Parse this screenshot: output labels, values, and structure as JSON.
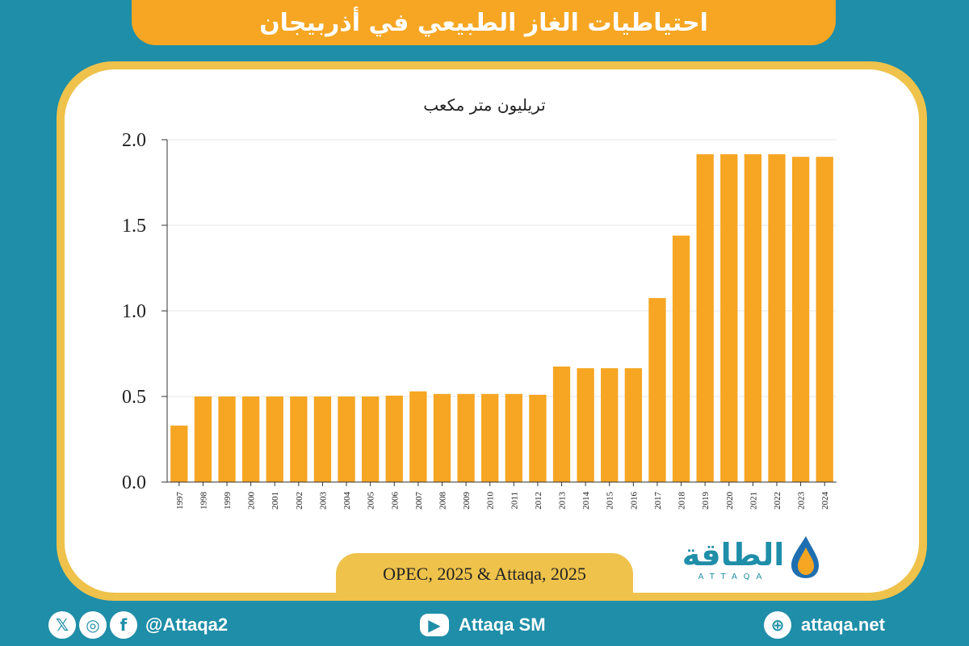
{
  "header": {
    "title": "احتياطيات الغاز الطبيعي في أذربيجان"
  },
  "source": {
    "text": "OPEC, 2025 & Attaqa, 2025"
  },
  "logo": {
    "arabic": "الطاقة",
    "latin": "ATTAQA"
  },
  "footer": {
    "social_handle": "@Attaqa2",
    "youtube": "Attaqa SM",
    "website": "attaqa.net",
    "icons": [
      "x-icon",
      "instagram-icon",
      "facebook-icon",
      "youtube-icon",
      "globe-icon"
    ]
  },
  "colors": {
    "bar": "#f6a623",
    "background": "#1f8ea8",
    "frame": "#eec24b"
  },
  "chart_data": {
    "type": "bar",
    "title": "",
    "ylabel": "تريليون متر مكعب",
    "xlabel": "",
    "ylim": [
      0,
      2.0
    ],
    "yticks": [
      "0.0",
      "0.5",
      "1.0",
      "1.5",
      "2.0"
    ],
    "grid": true,
    "categories": [
      "1997",
      "1998",
      "1999",
      "2000",
      "2001",
      "2002",
      "2003",
      "2004",
      "2005",
      "2006",
      "2007",
      "2008",
      "2009",
      "2010",
      "2011",
      "2012",
      "2013",
      "2014",
      "2015",
      "2016",
      "2017",
      "2018",
      "2019",
      "2020",
      "2021",
      "2022",
      "2023",
      "2024"
    ],
    "values": [
      0.33,
      0.5,
      0.5,
      0.5,
      0.5,
      0.5,
      0.5,
      0.5,
      0.5,
      0.505,
      0.53,
      0.515,
      0.515,
      0.515,
      0.515,
      0.51,
      0.675,
      0.665,
      0.665,
      0.665,
      1.075,
      1.44,
      1.915,
      1.915,
      1.915,
      1.915,
      1.9,
      1.9
    ]
  }
}
